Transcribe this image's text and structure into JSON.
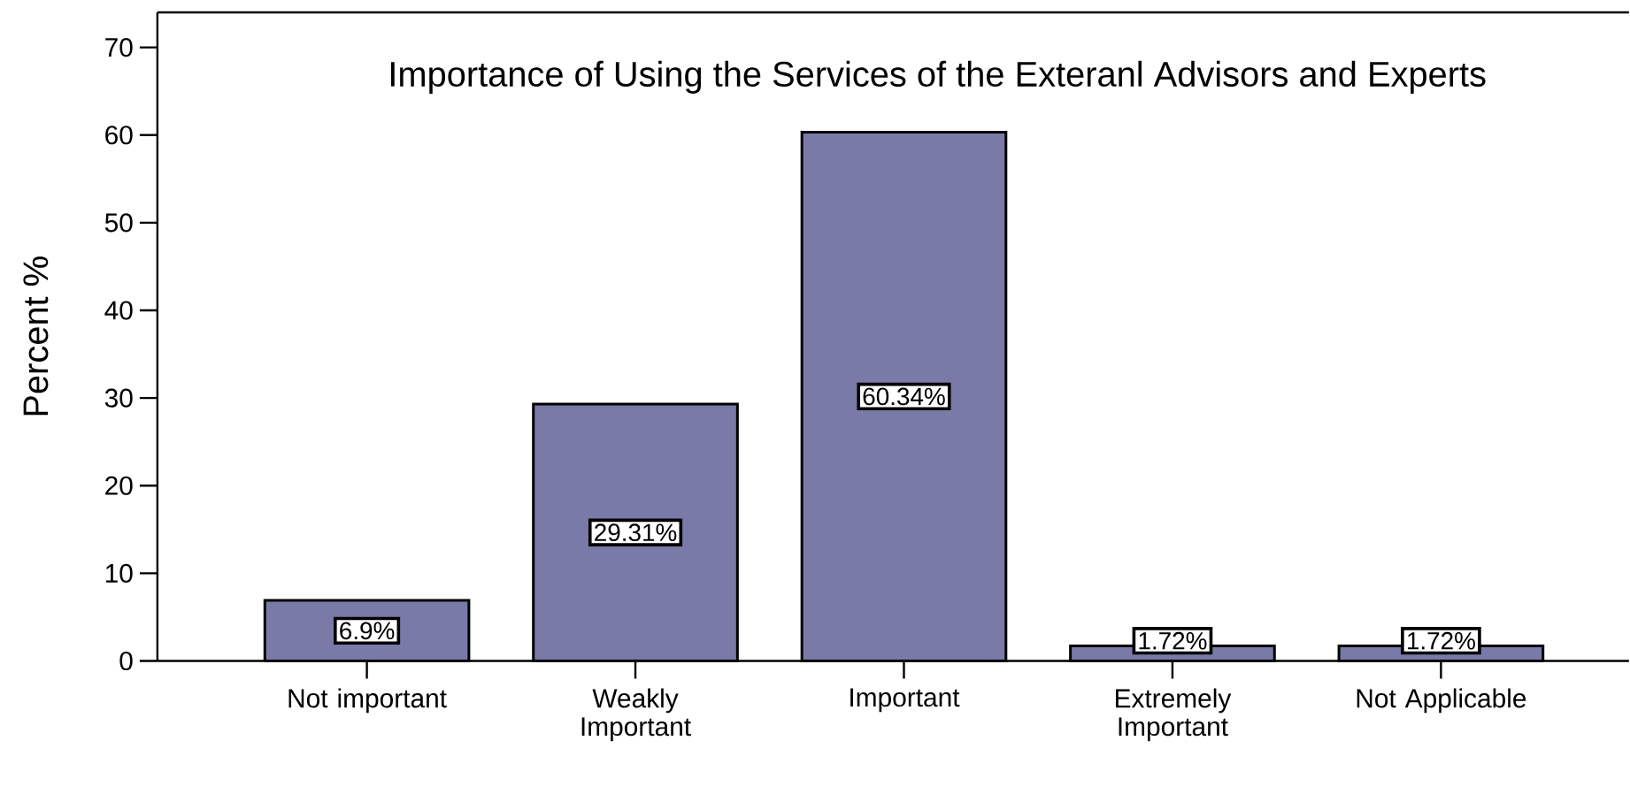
{
  "chart_data": {
    "type": "bar",
    "title": "Importance of Using the Services of the Exteranl Advisors and Experts",
    "ylabel": "Percent %",
    "categories": [
      "Not important",
      "Weakly Important",
      "Important",
      "Extremely Important",
      "Not Applicable"
    ],
    "values": [
      6.9,
      29.31,
      60.34,
      1.72,
      1.72
    ],
    "value_labels": [
      "6.9%",
      "29.31%",
      "60.34%",
      "1.72%",
      "1.72%"
    ],
    "color": "#7a7aa8",
    "ylim": [
      0,
      74
    ],
    "yticks": [
      0,
      10,
      20,
      30,
      40,
      50,
      60,
      70
    ],
    "grid": false
  }
}
